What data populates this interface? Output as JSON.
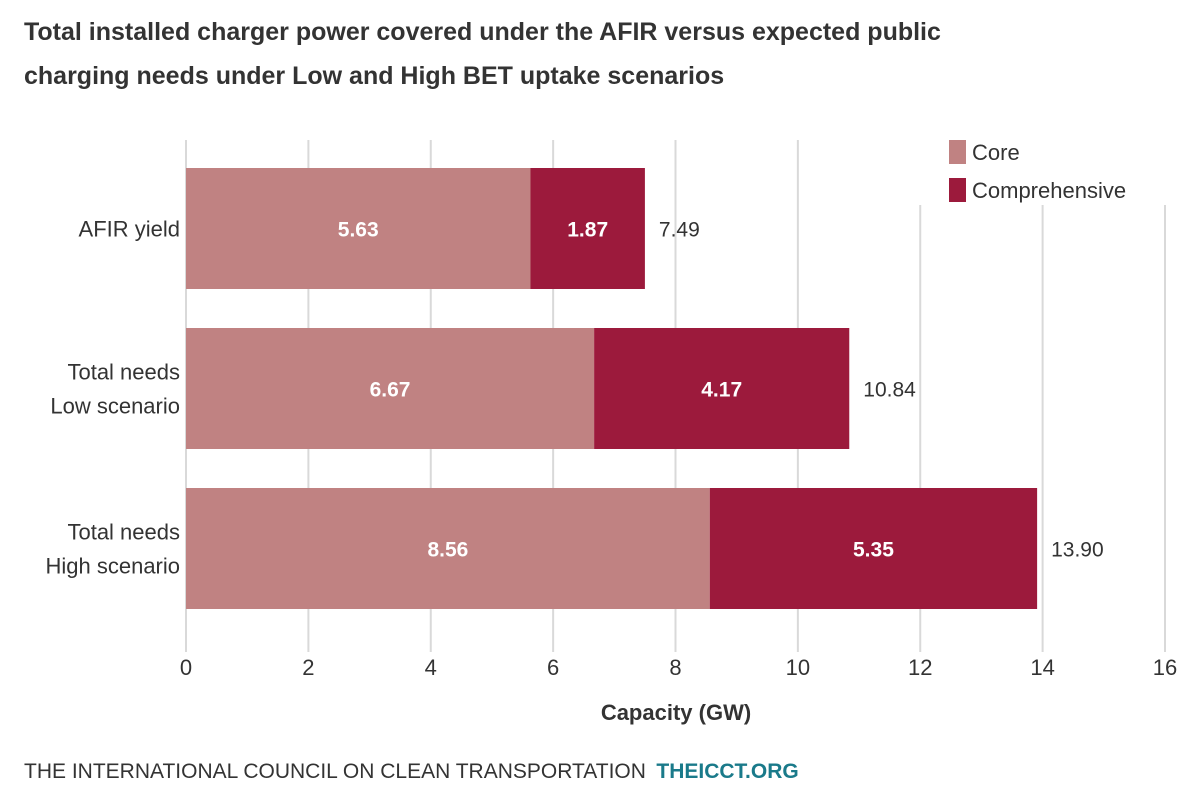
{
  "chart_data": {
    "type": "bar",
    "orientation": "horizontal",
    "stacked": true,
    "title": "Total installed charger power covered under the AFIR versus expected public charging needs under Low and High BET uptake scenarios",
    "title_lines": [
      "Total installed charger power covered under the AFIR versus expected public",
      "charging needs under Low and High BET uptake scenarios"
    ],
    "categories": [
      [
        "AFIR yield"
      ],
      [
        "Total needs",
        "Low scenario"
      ],
      [
        "Total needs",
        "High scenario"
      ]
    ],
    "series": [
      {
        "name": "Core",
        "color": "#c08282",
        "values": [
          5.63,
          6.67,
          8.56
        ],
        "labels": [
          "5.63",
          "6.67",
          "8.56"
        ]
      },
      {
        "name": "Comprehensive",
        "color": "#9c1a3c",
        "values": [
          1.87,
          4.17,
          5.35
        ],
        "labels": [
          "1.87",
          "4.17",
          "5.35"
        ]
      }
    ],
    "totals": [
      "7.49",
      "10.84",
      "13.90"
    ],
    "xlabel": "Capacity (GW)",
    "ylabel": "",
    "xlim": [
      0,
      16
    ],
    "xticks": [
      "0",
      "2",
      "4",
      "6",
      "8",
      "10",
      "12",
      "14",
      "16"
    ],
    "grid": "vertical",
    "legend_placement": "top-right"
  },
  "footer": {
    "org": "THE INTERNATIONAL COUNCIL ON CLEAN TRANSPORTATION",
    "site": "THEICCT.ORG",
    "site_color": "#1a7a8a"
  }
}
